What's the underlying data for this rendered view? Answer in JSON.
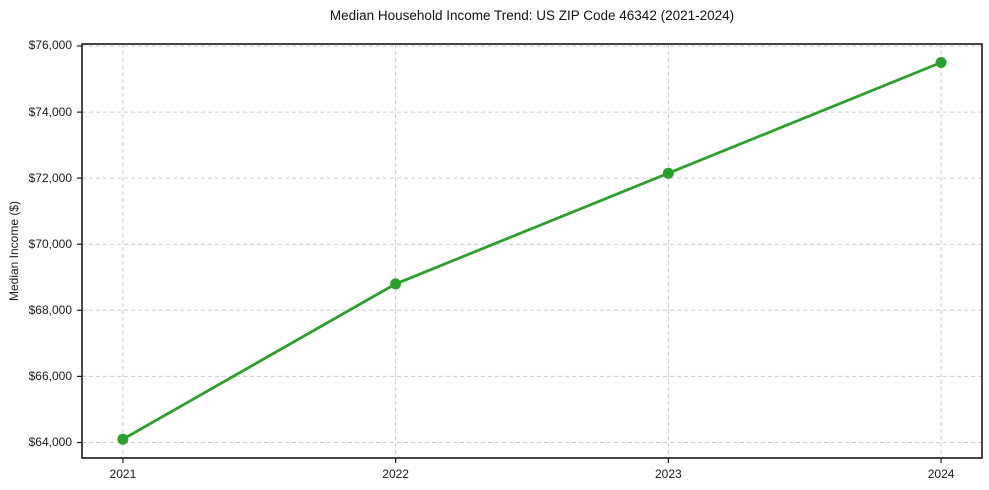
{
  "chart_data": {
    "type": "line",
    "title": "Median Household Income Trend: US ZIP Code 46342 (2021-2024)",
    "xlabel": "",
    "ylabel": "Median Income ($)",
    "x": [
      2021,
      2022,
      2023,
      2024
    ],
    "series": [
      {
        "name": "Median Household Income",
        "values": [
          64100,
          68800,
          72150,
          75500
        ],
        "color": "#2ca02c",
        "marker": "circle",
        "line_width": 2.8,
        "marker_radius": 5.5
      }
    ],
    "xticks": {
      "values": [
        2021,
        2022,
        2023,
        2024
      ],
      "labels": [
        "2021",
        "2022",
        "2023",
        "2024"
      ]
    },
    "yticks": {
      "values": [
        64000,
        66000,
        68000,
        70000,
        72000,
        74000,
        76000
      ],
      "labels": [
        "$64,000",
        "$66,000",
        "$68,000",
        "$70,000",
        "$72,000",
        "$74,000",
        "$76,000"
      ]
    },
    "xlim": [
      2020.85,
      2024.15
    ],
    "ylim": [
      63530,
      76060
    ],
    "grid": {
      "visible": true,
      "line_style": "dashed",
      "color": "#cccccc"
    },
    "legend_position": "none",
    "colors": {
      "background": "#ffffff",
      "spine": "#1a1a1a",
      "tick_text": "#1a1a1a",
      "title_text": "#111111"
    }
  }
}
